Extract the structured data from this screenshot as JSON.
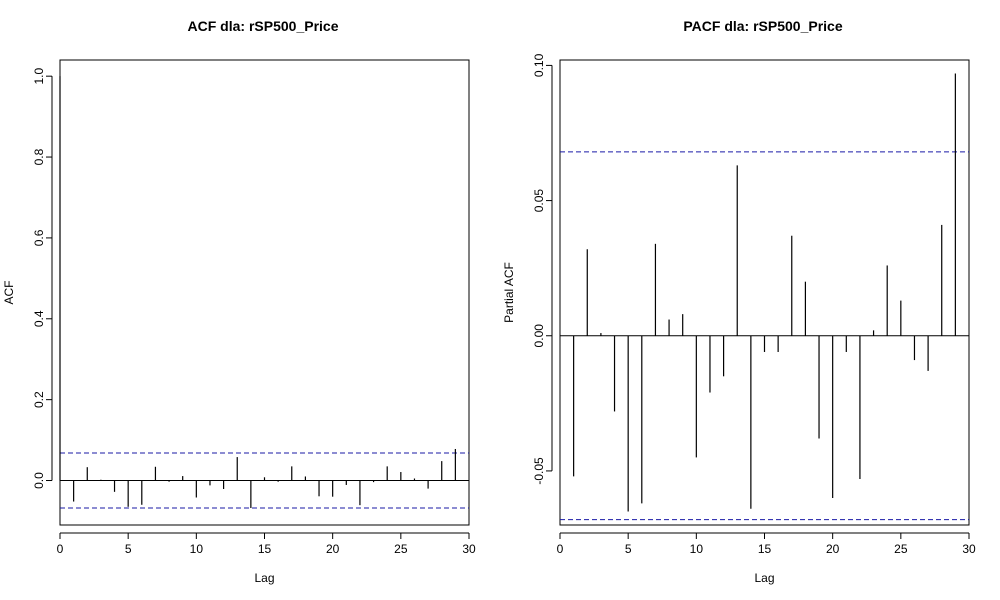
{
  "chart_data": [
    {
      "type": "bar",
      "title": "ACF dla: rSP500_Price",
      "xlabel": "Lag",
      "ylabel": "ACF",
      "xlim": [
        0,
        30
      ],
      "ylim": [
        -0.11,
        1.04
      ],
      "xticks": [
        0,
        5,
        10,
        15,
        20,
        25,
        30
      ],
      "yticks": [
        0.0,
        0.2,
        0.4,
        0.6,
        0.8,
        1.0
      ],
      "ytick_labels": [
        "0.0",
        "0.2",
        "0.4",
        "0.6",
        "0.8",
        "1.0"
      ],
      "confidence_bounds": [
        0.068,
        -0.068
      ],
      "series": [
        {
          "name": "ACF",
          "lags": [
            0,
            1,
            2,
            3,
            4,
            5,
            6,
            7,
            8,
            9,
            10,
            11,
            12,
            13,
            14,
            15,
            16,
            17,
            18,
            19,
            20,
            21,
            22,
            23,
            24,
            25,
            26,
            27,
            28,
            29
          ],
          "values": [
            1.0,
            -0.052,
            0.033,
            0.002,
            -0.028,
            -0.065,
            -0.06,
            0.034,
            -0.003,
            0.011,
            -0.042,
            -0.012,
            -0.021,
            0.058,
            -0.068,
            0.008,
            -0.003,
            0.035,
            0.01,
            -0.039,
            -0.04,
            -0.011,
            -0.061,
            -0.004,
            0.035,
            0.021,
            0.005,
            -0.02,
            0.048,
            0.078
          ]
        }
      ]
    },
    {
      "type": "bar",
      "title": "PACF dla: rSP500_Price",
      "xlabel": "Lag",
      "ylabel": "Partial ACF",
      "xlim": [
        0,
        30
      ],
      "ylim": [
        -0.07,
        0.102
      ],
      "xticks": [
        0,
        5,
        10,
        15,
        20,
        25,
        30
      ],
      "yticks": [
        -0.05,
        0.0,
        0.05,
        0.1
      ],
      "ytick_labels": [
        "-0.05",
        "0.00",
        "0.05",
        "0.10"
      ],
      "confidence_bounds": [
        0.068,
        -0.068
      ],
      "series": [
        {
          "name": "Partial ACF",
          "lags": [
            1,
            2,
            3,
            4,
            5,
            6,
            7,
            8,
            9,
            10,
            11,
            12,
            13,
            14,
            15,
            16,
            17,
            18,
            19,
            20,
            21,
            22,
            23,
            24,
            25,
            26,
            27,
            28,
            29
          ],
          "values": [
            -0.052,
            0.032,
            0.001,
            -0.028,
            -0.065,
            -0.062,
            0.034,
            0.006,
            0.008,
            -0.045,
            -0.021,
            -0.015,
            0.063,
            -0.064,
            -0.006,
            -0.006,
            0.037,
            0.02,
            -0.038,
            -0.06,
            -0.006,
            -0.053,
            0.002,
            0.026,
            0.013,
            -0.009,
            -0.013,
            0.041,
            0.097
          ]
        }
      ]
    }
  ]
}
